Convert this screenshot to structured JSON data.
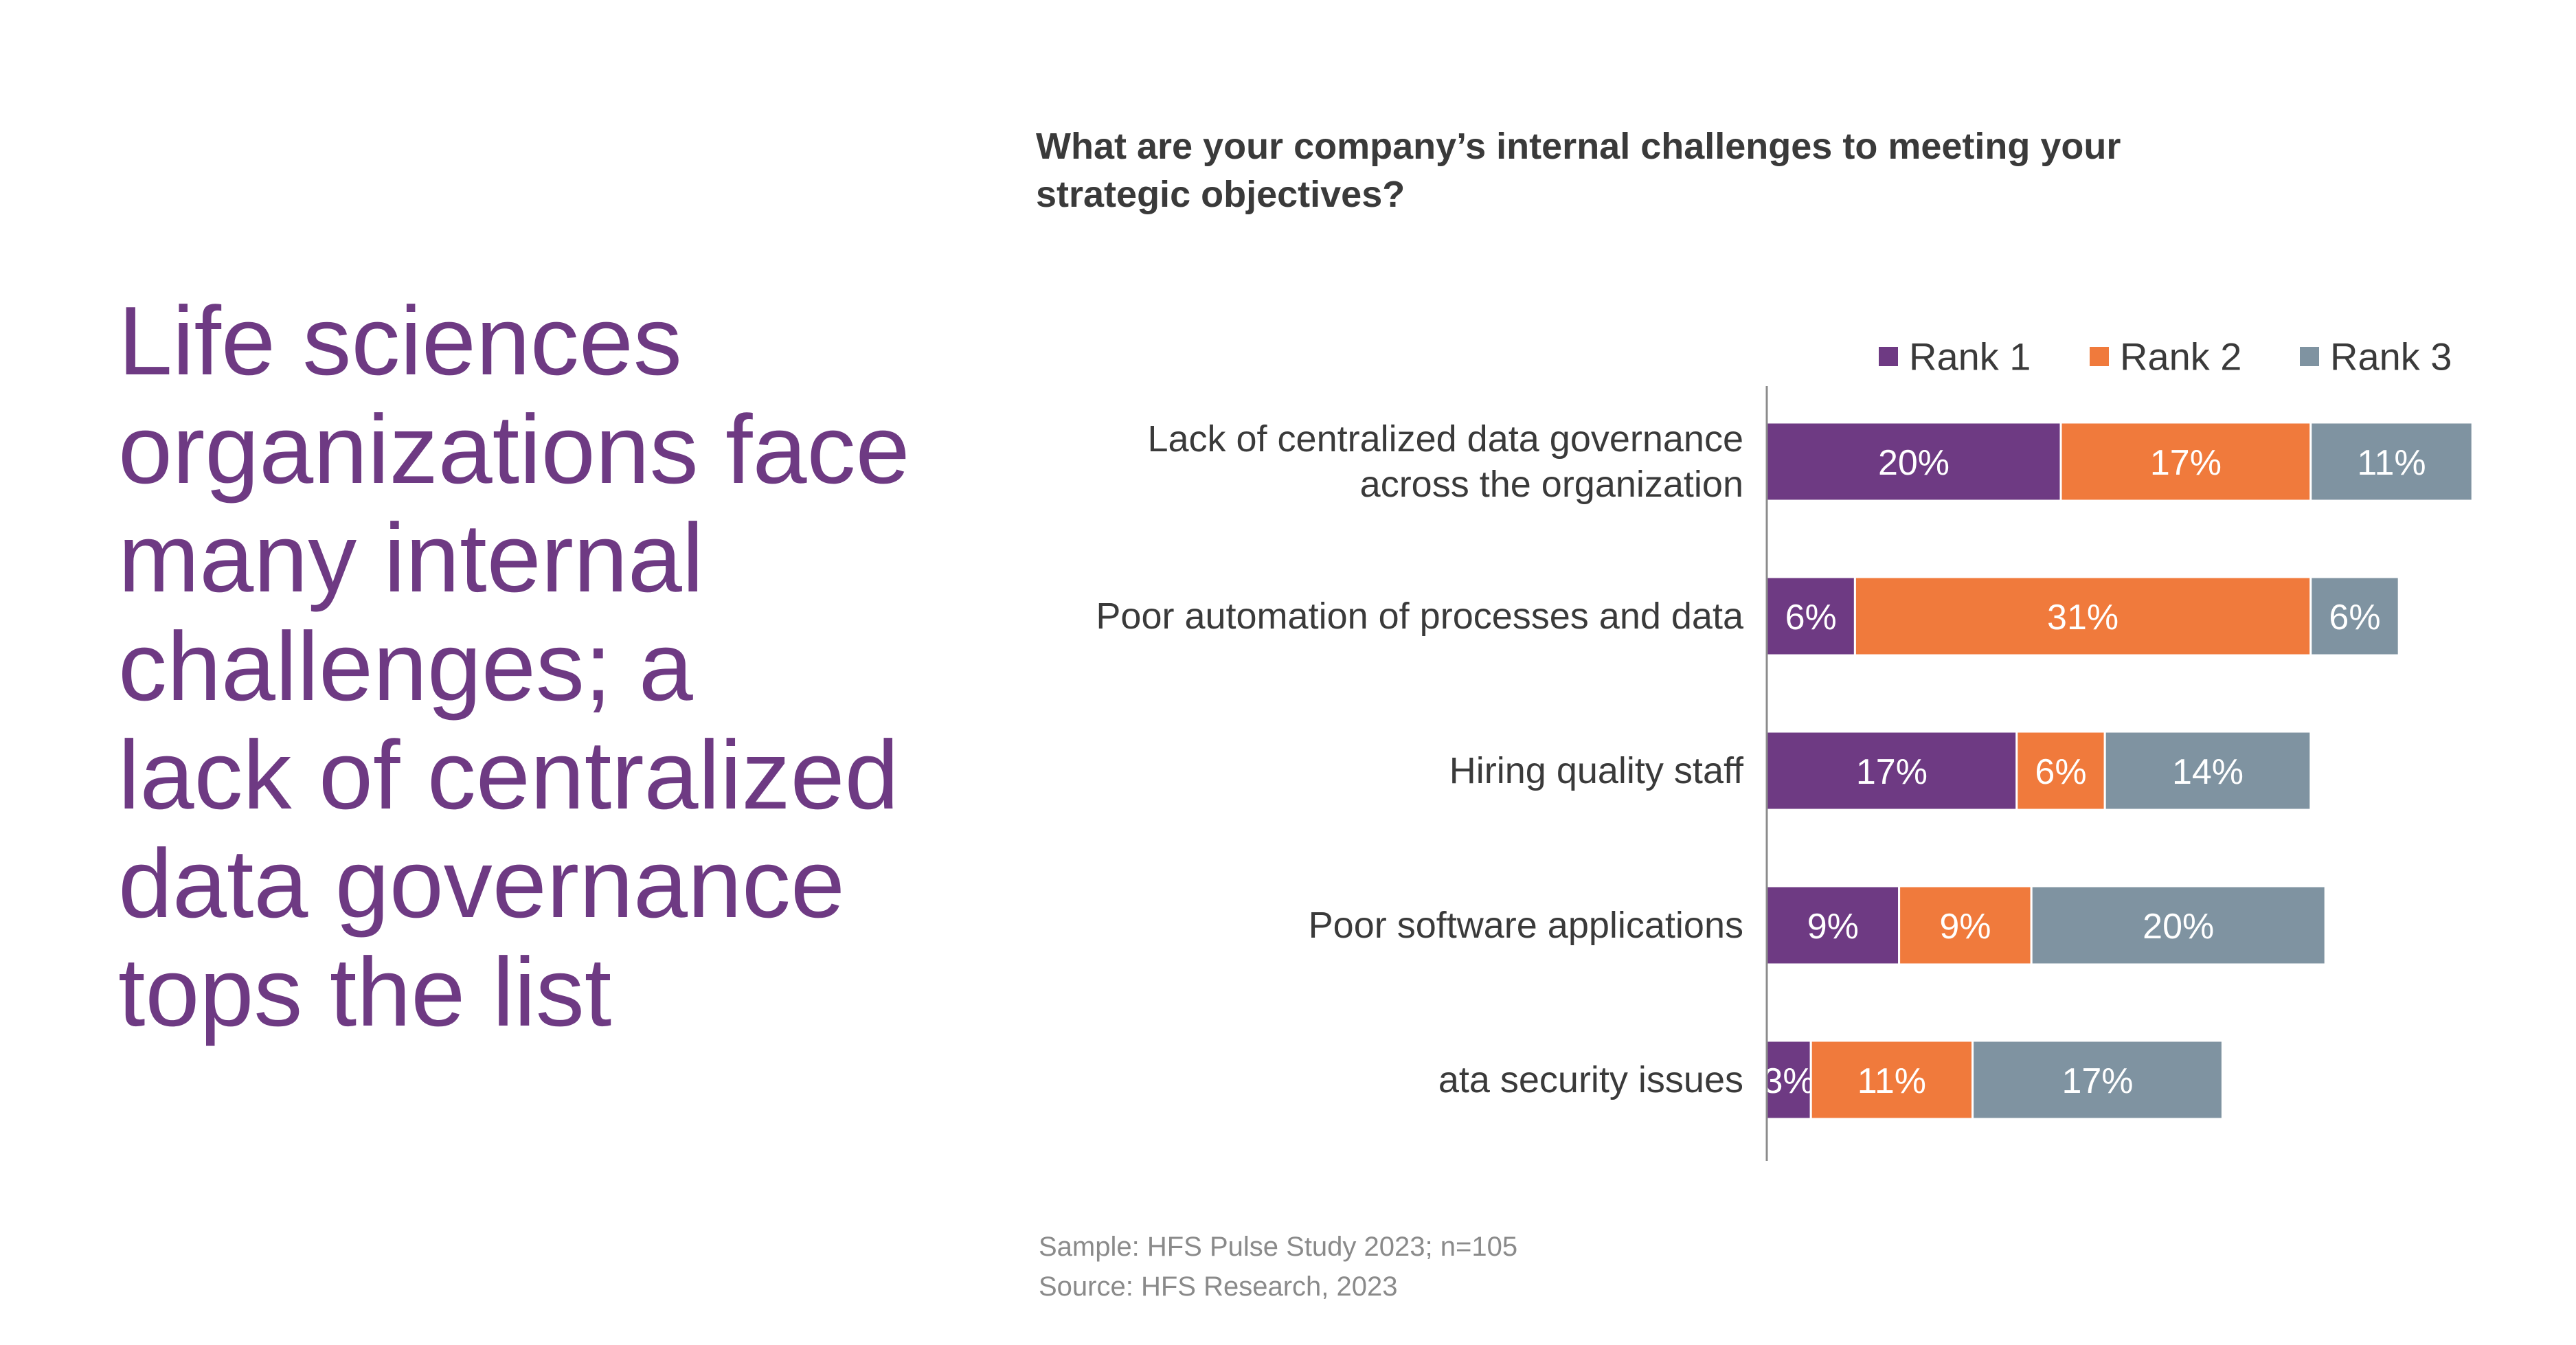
{
  "headline": "Life sciences\norganizations face\nmany internal\nchallenges; a\nlack of centralized\ndata governance\ntops the list",
  "chart_data": {
    "type": "bar",
    "orientation": "horizontal",
    "stacked": true,
    "title": "What are your company’s internal challenges to meeting your strategic objectives?",
    "categories": [
      "Lack of centralized data governance across the organization",
      "Poor automation of processes and data",
      "Hiring quality staff",
      "Poor software applications",
      "ata security issues"
    ],
    "category_lines": [
      [
        "Lack of centralized data governance",
        "across the organization"
      ],
      [
        "Poor automation of processes and data"
      ],
      [
        "Hiring quality staff"
      ],
      [
        "Poor software applications"
      ],
      [
        "ata security issues"
      ]
    ],
    "series": [
      {
        "name": "Rank 1",
        "color": "#6e3a83",
        "values": [
          20,
          6,
          17,
          9,
          3
        ],
        "labels": [
          "20%",
          "6%",
          "17%",
          "9%",
          "3%"
        ]
      },
      {
        "name": "Rank 2",
        "color": "#f07a3c",
        "values": [
          17,
          31,
          6,
          9,
          11
        ],
        "labels": [
          "17%",
          "31%",
          "6%",
          "9%",
          "11%"
        ]
      },
      {
        "name": "Rank 3",
        "color": "#7f93a1",
        "values": [
          11,
          6,
          14,
          20,
          17
        ],
        "labels": [
          "11%",
          "6%",
          "14%",
          "20%",
          "17%"
        ]
      }
    ],
    "unit": "%",
    "legend": "top-right",
    "grid": false,
    "xaxis_visible": false
  },
  "notes": {
    "sample": "Sample: HFS Pulse Study 2023; n=105",
    "source": "Source: HFS Research, 2023"
  }
}
